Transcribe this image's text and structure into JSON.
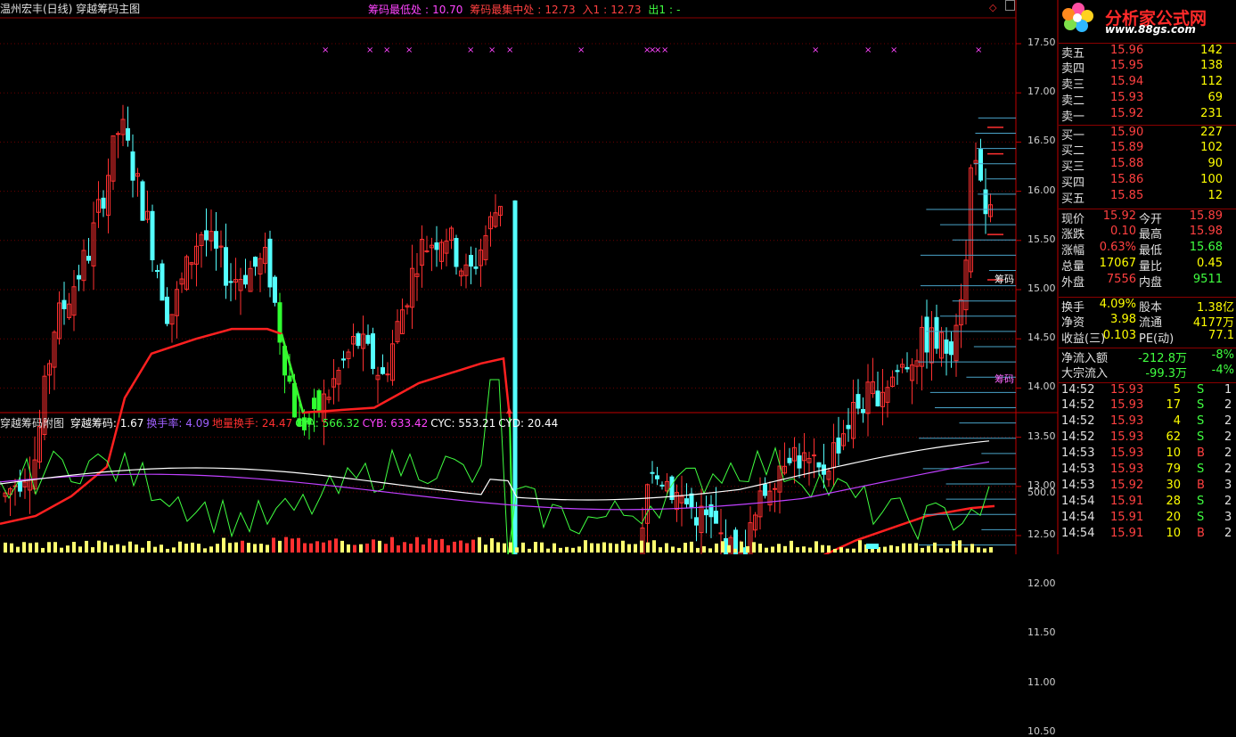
{
  "main_title": "温州宏丰(日线) 穿越筹码主图",
  "chip_info": [
    {
      "label": "筹码最低处",
      "value": "10.70",
      "color": "#ff44ff"
    },
    {
      "label": "筹码最集中处",
      "value": "12.73",
      "color": "#ff4040"
    },
    {
      "label": "入1",
      "value": "12.73",
      "color": "#ff4040"
    },
    {
      "label": "出1",
      "value": "-",
      "color": "#40ff40"
    }
  ],
  "price_axis": [
    "17.50",
    "17.00",
    "16.50",
    "16.00",
    "15.50",
    "15.00",
    "14.50",
    "14.00",
    "13.50",
    "13.00",
    "12.50",
    "12.00",
    "11.50",
    "11.00",
    "10.50"
  ],
  "chip_label": "筹码",
  "sub_indicator": {
    "name": "穿越筹码附图",
    "items": [
      {
        "label": "穿越筹码",
        "value": "1.67",
        "color": "#ffffff"
      },
      {
        "label": "换手率",
        "value": "4.09",
        "color": "#a060ff"
      },
      {
        "label": "地量换手",
        "value": "24.47",
        "color": "#ff3030"
      },
      {
        "label": "CYA",
        "value": "566.32",
        "color": "#40ff40"
      },
      {
        "label": "CYB",
        "value": "633.42",
        "color": "#ff44ff"
      },
      {
        "label": "CYC",
        "value": "553.21",
        "color": "#ffffff"
      },
      {
        "label": "CYD",
        "value": "20.44",
        "color": "#ffffff"
      }
    ],
    "axis_label": "500.0"
  },
  "logo": {
    "text": "分析家公式网",
    "url": "www.88gs.com"
  },
  "order_book": {
    "sell": [
      {
        "label": "卖五",
        "price": "15.96",
        "vol": "142"
      },
      {
        "label": "卖四",
        "price": "15.95",
        "vol": "138"
      },
      {
        "label": "卖三",
        "price": "15.94",
        "vol": "112"
      },
      {
        "label": "卖二",
        "price": "15.93",
        "vol": "69"
      },
      {
        "label": "卖一",
        "price": "15.92",
        "vol": "231"
      }
    ],
    "buy": [
      {
        "label": "买一",
        "price": "15.90",
        "vol": "227"
      },
      {
        "label": "买二",
        "price": "15.89",
        "vol": "102"
      },
      {
        "label": "买三",
        "price": "15.88",
        "vol": "90"
      },
      {
        "label": "买四",
        "price": "15.86",
        "vol": "100"
      },
      {
        "label": "买五",
        "price": "15.85",
        "vol": "12"
      }
    ]
  },
  "quote": [
    {
      "l1": "现价",
      "v1": "15.92",
      "c1": "#ff4040",
      "l2": "今开",
      "v2": "15.89",
      "c2": "#ff4040"
    },
    {
      "l1": "涨跌",
      "v1": "0.10",
      "c1": "#ff4040",
      "l2": "最高",
      "v2": "15.98",
      "c2": "#ff4040"
    },
    {
      "l1": "涨幅",
      "v1": "0.63%",
      "c1": "#ff4040",
      "l2": "最低",
      "v2": "15.68",
      "c2": "#40ff40"
    },
    {
      "l1": "总量",
      "v1": "17067",
      "c1": "#ffff00",
      "l2": "量比",
      "v2": "0.45",
      "c2": "#ffff00"
    },
    {
      "l1": "外盘",
      "v1": "7556",
      "c1": "#ff4040",
      "l2": "内盘",
      "v2": "9511",
      "c2": "#40ff40"
    }
  ],
  "fundamentals": [
    {
      "l1": "换手",
      "v1": "4.09%",
      "l2": "股本",
      "v2": "1.38亿"
    },
    {
      "l1": "净资",
      "v1": "3.98",
      "l2": "流通",
      "v2": "4177万"
    },
    {
      "l1": "收益(三)",
      "v1": "0.103",
      "l2": "PE(动)",
      "v2": "77.1"
    }
  ],
  "flows": [
    {
      "label": "净流入额",
      "value": "-212.8万",
      "pct": "-8%"
    },
    {
      "label": "大宗流入",
      "value": "-99.3万",
      "pct": "-4%"
    }
  ],
  "ticks": [
    {
      "time": "14:52",
      "price": "15.93",
      "vol": "5",
      "side": "S",
      "n": "1"
    },
    {
      "time": "14:52",
      "price": "15.93",
      "vol": "17",
      "side": "S",
      "n": "2"
    },
    {
      "time": "14:52",
      "price": "15.93",
      "vol": "4",
      "side": "S",
      "n": "2"
    },
    {
      "time": "14:52",
      "price": "15.93",
      "vol": "62",
      "side": "S",
      "n": "2"
    },
    {
      "time": "14:53",
      "price": "15.93",
      "vol": "10",
      "side": "B",
      "n": "2"
    },
    {
      "time": "14:53",
      "price": "15.93",
      "vol": "79",
      "side": "S",
      "n": "2"
    },
    {
      "time": "14:53",
      "price": "15.92",
      "vol": "30",
      "side": "B",
      "n": "3"
    },
    {
      "time": "14:54",
      "price": "15.91",
      "vol": "28",
      "side": "S",
      "n": "2"
    },
    {
      "time": "14:54",
      "price": "15.91",
      "vol": "20",
      "side": "S",
      "n": "3"
    },
    {
      "time": "14:54",
      "price": "15.91",
      "vol": "10",
      "side": "B",
      "n": "2"
    }
  ],
  "colors": {
    "up": "#ff3030",
    "down": "#54ffff",
    "grid": "#8b0000",
    "chip": "#4aa3c8",
    "cost": "#ff2020",
    "low": "#c040c0"
  }
}
